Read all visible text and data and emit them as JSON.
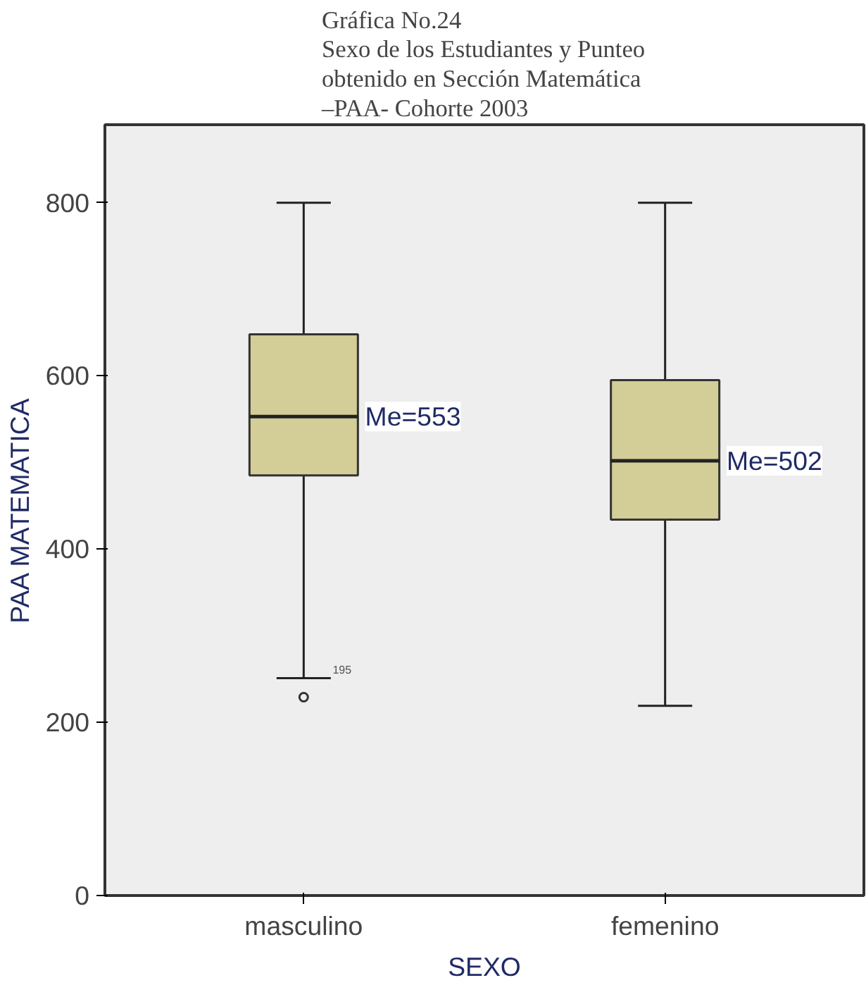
{
  "chart_data": {
    "type": "box",
    "title": "Gráfica No.24\nSexo de los Estudiantes y Punteo\nobtenido en Sección  Matemática\n–PAA- Cohorte 2003",
    "xlabel": "SEXO",
    "ylabel": "PAA MATEMATICA",
    "categories": [
      "masculino",
      "femenino"
    ],
    "color": "#d3cd97",
    "boxes": [
      {
        "low": 251,
        "q1": 485,
        "median": 553,
        "q3": 648,
        "high": 800,
        "outliers": [
          229
        ]
      },
      {
        "low": 219,
        "q1": 434,
        "median": 502,
        "q3": 595,
        "high": 800
      }
    ],
    "ylim": [
      0,
      890
    ],
    "yticks": [
      0,
      200,
      400,
      600,
      800
    ],
    "annotations": [
      {
        "text": "Me=553",
        "x": "masculino",
        "y": 553
      },
      {
        "text": "Me=502",
        "x": "femenino",
        "y": 502
      },
      {
        "text": "195",
        "x": "masculino",
        "y": 251
      }
    ]
  }
}
